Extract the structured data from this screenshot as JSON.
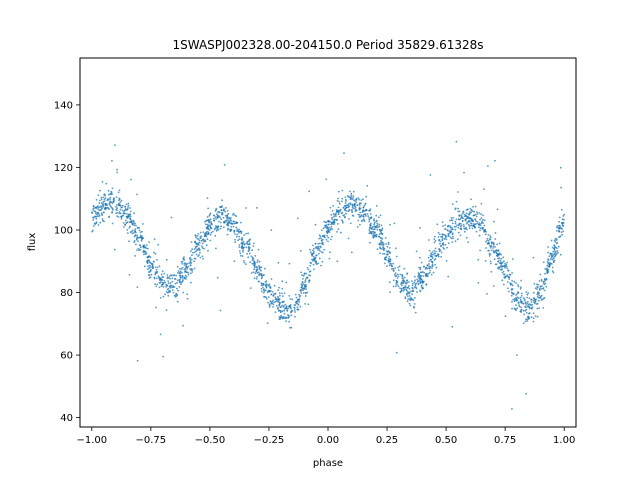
{
  "chart_data": {
    "type": "scatter",
    "title": "1SWASPJ002328.00-204150.0 Period 35829.61328s",
    "xlabel": "phase",
    "ylabel": "flux",
    "xlim": [
      -1.05,
      1.05
    ],
    "ylim": [
      37,
      155
    ],
    "x_ticks": [
      -1.0,
      -0.75,
      -0.5,
      -0.25,
      0.0,
      0.25,
      0.5,
      0.75,
      1.0
    ],
    "x_tick_labels": [
      "−1.00",
      "−0.75",
      "−0.50",
      "−0.25",
      "0.00",
      "0.25",
      "0.50",
      "0.75",
      "1.00"
    ],
    "y_ticks": [
      40,
      60,
      80,
      100,
      120,
      140
    ],
    "y_tick_labels": [
      "40",
      "60",
      "80",
      "100",
      "120",
      "140"
    ],
    "grid": false,
    "point_color": "#1f77b4",
    "series": [
      {
        "x": [
          -1.0,
          -0.95,
          -0.9,
          -0.85,
          -0.8,
          -0.75,
          -0.7,
          -0.65,
          -0.6,
          -0.55,
          -0.5,
          -0.45,
          -0.4,
          -0.35,
          -0.3,
          -0.25,
          -0.2,
          -0.15,
          -0.1,
          -0.05,
          0.0,
          0.05,
          0.1,
          0.15,
          0.2,
          0.25,
          0.3,
          0.35,
          0.4,
          0.45,
          0.5,
          0.55,
          0.6,
          0.65,
          0.7,
          0.75,
          0.8,
          0.85,
          0.9,
          0.95,
          1.0
        ],
        "y": [
          104,
          108,
          108,
          104,
          97,
          89,
          83,
          82,
          87,
          95,
          101,
          104,
          101,
          95,
          87,
          80,
          76,
          74,
          82,
          93,
          101,
          106,
          108,
          106,
          100,
          92,
          84,
          80,
          84,
          92,
          99,
          103,
          104,
          101,
          94,
          87,
          79,
          74,
          80,
          92,
          102
        ]
      }
    ]
  }
}
